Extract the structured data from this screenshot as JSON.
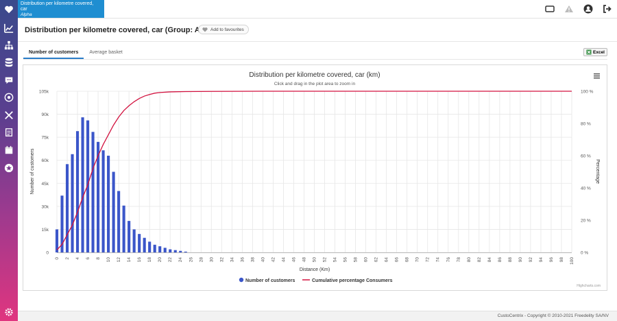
{
  "breadcrumb": {
    "line1": "Distribution per kilometre covered,",
    "line2": "car",
    "sub": "Alpha"
  },
  "page": {
    "title": "Distribution per kilometre covered, car (Group: Alpha)",
    "fav_label": "Add to favourites"
  },
  "tabs": [
    {
      "label": "Number of customers",
      "active": true
    },
    {
      "label": "Average basket",
      "active": false
    }
  ],
  "excel_label": "Excel",
  "footer": "CustoCentrix - Copyright © 2010-2021 Freedelity SA/NV",
  "credit": "Highcharts.com",
  "colors": {
    "bars": "#3b56c9",
    "line": "#d2123f",
    "brand": "#1f8ed1"
  },
  "chart_data": {
    "type": "bar",
    "title": "Distribution per kilometre covered, car (km)",
    "subtitle": "Click and drag in the plot area to zoom in",
    "xlabel": "Distance (Km)",
    "ylabel": "Number of customers",
    "y2label": "Percentage",
    "xlim": [
      0,
      100
    ],
    "ylim": [
      0,
      105000
    ],
    "y2lim": [
      0,
      100
    ],
    "x_ticks": [
      "0",
      "2",
      "4",
      "6",
      "8",
      "10",
      "12",
      "14",
      "16",
      "18",
      "20",
      "22",
      "24",
      "26",
      "28",
      "30",
      "32",
      "34",
      "36",
      "38",
      "40",
      "42",
      "44",
      "46",
      "48",
      "50",
      "52",
      "54",
      "56",
      "58",
      "60",
      "62",
      "64",
      "66",
      "68",
      "70",
      "72",
      "74",
      "76",
      "78",
      "80",
      "82",
      "84",
      "86",
      "88",
      "90",
      "92",
      "94",
      "96",
      "98",
      "100"
    ],
    "y_ticks": [
      "0",
      "15k",
      "30k",
      "45k",
      "60k",
      "75k",
      "90k",
      "105k"
    ],
    "y2_ticks": [
      "0 %",
      "20 %",
      "40 %",
      "60 %",
      "80 %",
      "100 %"
    ],
    "series": [
      {
        "name": "Number of customers",
        "kind": "bar",
        "x": [
          0,
          1,
          2,
          3,
          4,
          5,
          6,
          7,
          8,
          9,
          10,
          11,
          12,
          13,
          14,
          15,
          16,
          17,
          18,
          19,
          20,
          21,
          22,
          23,
          24,
          25
        ],
        "values": [
          15000,
          37000,
          57500,
          64000,
          79000,
          88000,
          86000,
          78500,
          72000,
          66500,
          63000,
          52500,
          40000,
          30500,
          20500,
          15000,
          12000,
          9500,
          7000,
          5000,
          4000,
          3000,
          2000,
          1500,
          1000,
          500
        ]
      },
      {
        "name": "Cumulative percentage Consumers",
        "kind": "line",
        "x": [
          0,
          1,
          2,
          3,
          4,
          5,
          6,
          7,
          8,
          9,
          10,
          11,
          12,
          13,
          14,
          15,
          16,
          17,
          18,
          19,
          20,
          22,
          25,
          30,
          40,
          60,
          80,
          100
        ],
        "values": [
          1.5,
          5,
          11,
          17,
          25,
          34,
          42,
          52,
          60,
          67,
          73,
          79,
          84,
          88,
          91,
          93.5,
          95.5,
          97,
          98,
          98.8,
          99.2,
          99.6,
          99.8,
          99.9,
          100,
          100,
          100,
          100
        ]
      }
    ],
    "legend_position": "bottom"
  }
}
